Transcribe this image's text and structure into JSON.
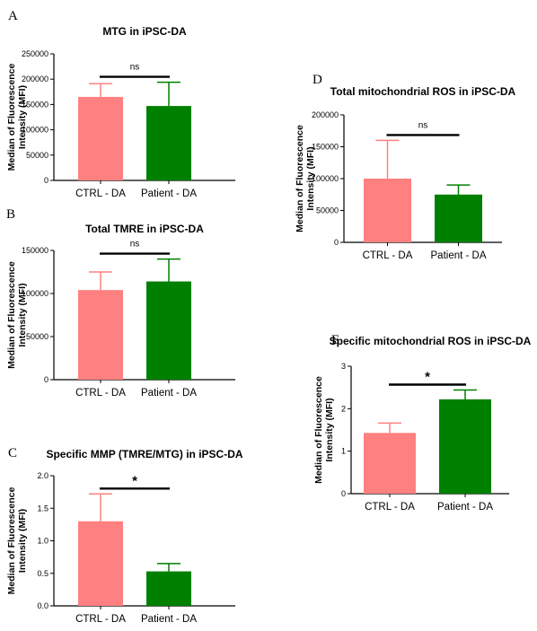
{
  "colors": {
    "ctrl": "#ff8080",
    "patient": "#008000",
    "axis": "#000000"
  },
  "chart_data": [
    {
      "panel": "A",
      "type": "bar",
      "title": "MTG in iPSC-DA",
      "ylabel_lines": [
        "Median of Fluorescence",
        "Intensity (MFI)"
      ],
      "categories": [
        "CTRL - DA",
        "Patient - DA"
      ],
      "values": [
        165000,
        147000
      ],
      "errors": [
        26000,
        47000
      ],
      "ylim": [
        0,
        250000
      ],
      "yticks": [
        0,
        50000,
        100000,
        150000,
        200000,
        250000
      ],
      "ytick_labels": [
        "0",
        "50000",
        "100000",
        "150000",
        "200000",
        "250000"
      ],
      "significance": "ns"
    },
    {
      "panel": "B",
      "type": "bar",
      "title": "Total TMRE in iPSC-DA",
      "ylabel_lines": [
        "Median of Fluorescence",
        "Intensity (MFI)"
      ],
      "categories": [
        "CTRL - DA",
        "Patient - DA"
      ],
      "values": [
        104000,
        114000
      ],
      "errors": [
        21000,
        26000
      ],
      "ylim": [
        0,
        150000
      ],
      "yticks": [
        0,
        50000,
        100000,
        150000
      ],
      "ytick_labels": [
        "0",
        "50000",
        "100000",
        "150000"
      ],
      "significance": "ns"
    },
    {
      "panel": "C",
      "type": "bar",
      "title": "Specific MMP (TMRE/MTG) in iPSC-DA",
      "ylabel_lines": [
        "Median of Fluorescence",
        "Intensity (MFI)"
      ],
      "categories": [
        "CTRL - DA",
        "Patient - DA"
      ],
      "values": [
        1.3,
        0.53
      ],
      "errors": [
        0.42,
        0.12
      ],
      "ylim": [
        0,
        2.0
      ],
      "yticks": [
        0,
        0.5,
        1.0,
        1.5,
        2.0
      ],
      "ytick_labels": [
        "0.0",
        "0.5",
        "1.0",
        "1.5",
        "2.0"
      ],
      "significance": "*"
    },
    {
      "panel": "D",
      "type": "bar",
      "title": "Total mitochondrial ROS in iPSC-DA",
      "ylabel_lines": [
        "Median of Fluorescence",
        "Intensity (MFI)"
      ],
      "categories": [
        "CTRL - DA",
        "Patient - DA"
      ],
      "values": [
        100000,
        75000
      ],
      "errors": [
        60000,
        15000
      ],
      "ylim": [
        0,
        200000
      ],
      "yticks": [
        0,
        50000,
        100000,
        150000,
        200000
      ],
      "ytick_labels": [
        "0",
        "50000",
        "100000",
        "150000",
        "200000"
      ],
      "significance": "ns"
    },
    {
      "panel": "E",
      "type": "bar",
      "title": "Specific mitochondrial ROS in iPSC-DA",
      "ylabel_lines": [
        "Median of Fluorescence",
        "Intensity (MFI)"
      ],
      "categories": [
        "CTRL - DA",
        "Patient - DA"
      ],
      "values": [
        1.43,
        2.22
      ],
      "errors": [
        0.23,
        0.22
      ],
      "ylim": [
        0,
        3
      ],
      "yticks": [
        0,
        1,
        2,
        3
      ],
      "ytick_labels": [
        "0",
        "1",
        "2",
        "3"
      ],
      "significance": "*"
    }
  ]
}
